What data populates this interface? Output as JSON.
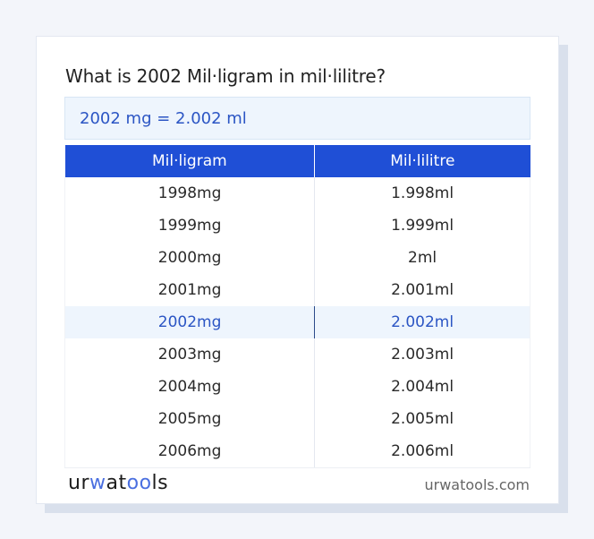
{
  "title": "What is 2002 Mil·ligram in mil·lilitre?",
  "result": "2002 mg = 2.002 ml",
  "table": {
    "headers": [
      "Mil·ligram",
      "Mil·lilitre"
    ],
    "rows": [
      [
        "1998mg",
        "1.998ml"
      ],
      [
        "1999mg",
        "1.999ml"
      ],
      [
        "2000mg",
        "2ml"
      ],
      [
        "2001mg",
        "2.001ml"
      ],
      [
        "2002mg",
        "2.002ml"
      ],
      [
        "2003mg",
        "2.003ml"
      ],
      [
        "2004mg",
        "2.004ml"
      ],
      [
        "2005mg",
        "2.005ml"
      ],
      [
        "2006mg",
        "2.006ml"
      ]
    ],
    "highlighted_row": 4
  },
  "footer": {
    "logo": {
      "a": "ur",
      "b": "w",
      "c": "at",
      "d": "oo",
      "e": "ls"
    },
    "site": "urwatools.com"
  },
  "colors": {
    "accent": "#1f4fd6",
    "highlight_text": "#2b55c4",
    "highlight_bg": "#eef5fd"
  }
}
